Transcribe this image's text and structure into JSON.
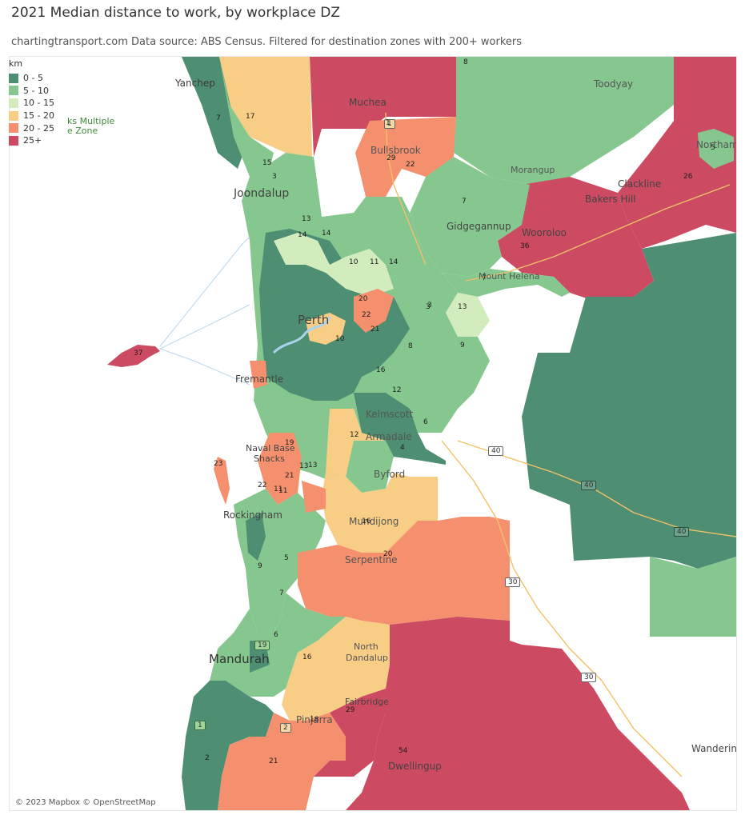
{
  "title": "2021 Median distance to work, by workplace DZ",
  "subtitle": "chartingtransport.com  Data source: ABS Census. Filtered for destination zones with 200+ workers",
  "legend": {
    "header": "km",
    "items": [
      {
        "label": "0 - 5",
        "color": "#4e8e72"
      },
      {
        "label": "5 - 10",
        "color": "#86c78f"
      },
      {
        "label": "10 - 15",
        "color": "#d3ecbd"
      },
      {
        "label": "15 - 20",
        "color": "#f8cd86"
      },
      {
        "label": "20 - 25",
        "color": "#f5906f"
      },
      {
        "label": "25+",
        "color": "#cc4a62"
      }
    ]
  },
  "partial_label": {
    "line1": "ks Multiple",
    "line2": "e Zone"
  },
  "place_labels": [
    "Yanchep",
    "Muchea",
    "Toodyay",
    "Bullsbrook",
    "Northam",
    "Morangup",
    "Clackline",
    "Bakers Hill",
    "Joondalup",
    "Gidgegannup",
    "Wooroloo",
    "Mount Helena",
    "Perth",
    "Fremantle",
    "Kelmscott",
    "Armadale",
    "Naval Base",
    "Shacks",
    "Byford",
    "Rockingham",
    "Mundijong",
    "Serpentine",
    "North",
    "Dandalup",
    "Mandurah",
    "Fairbridge",
    "Pinjarra",
    "Dwellingup",
    "Wandering"
  ],
  "road_shields": [
    "1",
    "1",
    "2",
    "19",
    "30",
    "30",
    "40",
    "40",
    "40"
  ],
  "zone_values": [
    "8",
    "7",
    "17",
    "5",
    "26",
    "15",
    "29",
    "22",
    "3",
    "7",
    "36",
    "13",
    "14",
    "7",
    "10",
    "11",
    "14",
    "20",
    "22",
    "3",
    "9",
    "13",
    "37",
    "21",
    "16",
    "23",
    "22",
    "21",
    "19",
    "13",
    "11",
    "16",
    "20",
    "5",
    "6",
    "9",
    "21",
    "54",
    "29",
    "16",
    "18",
    "7",
    "1",
    "2",
    "11",
    "12",
    "13",
    "14",
    "12",
    "10",
    "8",
    "4",
    "6",
    "3"
  ],
  "attribution": "© 2023 Mapbox © OpenStreetMap"
}
